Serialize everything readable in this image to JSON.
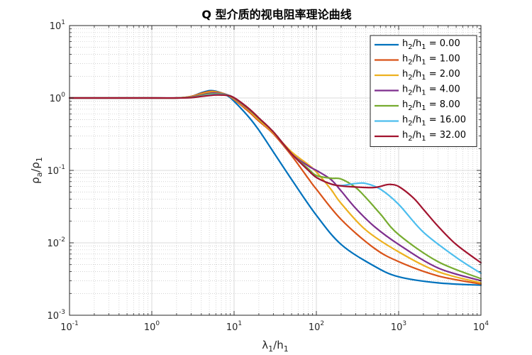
{
  "chart_data": {
    "type": "line",
    "title": "Q 型介质的视电阻率理论曲线",
    "xlabel": {
      "base": "λ",
      "sub": "1",
      "mid": "/h",
      "sub2": "1"
    },
    "ylabel": {
      "base": "ρ",
      "sub": "a",
      "mid": "/ρ",
      "sub2": "1"
    },
    "xscale": "log",
    "yscale": "log",
    "xlim": [
      0.1,
      10000
    ],
    "ylim": [
      0.001,
      10
    ],
    "x_ticks": [
      {
        "base": "10",
        "exp": "-1",
        "value": 0.1
      },
      {
        "base": "10",
        "exp": "0",
        "value": 1
      },
      {
        "base": "10",
        "exp": "1",
        "value": 10
      },
      {
        "base": "10",
        "exp": "2",
        "value": 100
      },
      {
        "base": "10",
        "exp": "3",
        "value": 1000
      },
      {
        "base": "10",
        "exp": "4",
        "value": 10000
      }
    ],
    "y_ticks": [
      {
        "base": "10",
        "exp": "-3",
        "value": 0.001
      },
      {
        "base": "10",
        "exp": "-2",
        "value": 0.01
      },
      {
        "base": "10",
        "exp": "-1",
        "value": 0.1
      },
      {
        "base": "10",
        "exp": "0",
        "value": 1
      },
      {
        "base": "10",
        "exp": "1",
        "value": 10
      }
    ],
    "grid": true,
    "minor_grid": true,
    "legend_position": "top-right",
    "series": [
      {
        "name": "h2/h1 = 0.00",
        "label": {
          "a": "h",
          "s1": "2",
          "b": "/h",
          "s2": "1",
          "c": " = 0.00"
        },
        "color": "#0072BD",
        "x": [
          0.1,
          1,
          2,
          3,
          4,
          5,
          6,
          8,
          10,
          15,
          20,
          30,
          50,
          100,
          200,
          500,
          1000,
          3000,
          10000
        ],
        "y": [
          1.0,
          1.0,
          1.0,
          1.05,
          1.18,
          1.26,
          1.24,
          1.1,
          0.9,
          0.55,
          0.36,
          0.18,
          0.075,
          0.024,
          0.0095,
          0.0048,
          0.0034,
          0.0028,
          0.0026
        ]
      },
      {
        "name": "h2/h1 = 1.00",
        "label": {
          "a": "h",
          "s1": "2",
          "b": "/h",
          "s2": "1",
          "c": " = 1.00"
        },
        "color": "#D95319",
        "x": [
          0.1,
          1,
          2,
          3,
          4,
          5,
          6,
          8,
          10,
          15,
          20,
          30,
          50,
          80,
          100,
          200,
          500,
          1000,
          3000,
          10000
        ],
        "y": [
          1.0,
          1.0,
          1.0,
          1.05,
          1.16,
          1.23,
          1.22,
          1.12,
          0.95,
          0.65,
          0.48,
          0.32,
          0.16,
          0.077,
          0.055,
          0.021,
          0.0085,
          0.0055,
          0.0035,
          0.0027
        ]
      },
      {
        "name": "h2/h1 = 2.00",
        "label": {
          "a": "h",
          "s1": "2",
          "b": "/h",
          "s2": "1",
          "c": " = 2.00"
        },
        "color": "#EDB120",
        "x": [
          0.1,
          1,
          2,
          3,
          4,
          5,
          6,
          8,
          10,
          15,
          20,
          30,
          50,
          80,
          100,
          150,
          200,
          400,
          1000,
          3000,
          10000
        ],
        "y": [
          1.0,
          1.0,
          1.0,
          1.04,
          1.13,
          1.2,
          1.2,
          1.12,
          0.97,
          0.68,
          0.5,
          0.33,
          0.18,
          0.12,
          0.095,
          0.055,
          0.035,
          0.015,
          0.0075,
          0.004,
          0.0028
        ]
      },
      {
        "name": "h2/h1 = 4.00",
        "label": {
          "a": "h",
          "s1": "2",
          "b": "/h",
          "s2": "1",
          "c": " = 4.00"
        },
        "color": "#7E2F8E",
        "x": [
          0.1,
          1,
          2,
          3,
          4,
          5,
          6,
          8,
          10,
          15,
          20,
          30,
          50,
          80,
          100,
          150,
          200,
          300,
          500,
          1000,
          3000,
          10000
        ],
        "y": [
          1.0,
          1.0,
          1.0,
          1.03,
          1.1,
          1.16,
          1.17,
          1.12,
          0.99,
          0.7,
          0.52,
          0.34,
          0.17,
          0.115,
          0.1,
          0.075,
          0.052,
          0.03,
          0.017,
          0.0095,
          0.0045,
          0.003
        ]
      },
      {
        "name": "h2/h1 = 8.00",
        "label": {
          "a": "h",
          "s1": "2",
          "b": "/h",
          "s2": "1",
          "c": " = 8.00"
        },
        "color": "#77AC30",
        "x": [
          0.1,
          1,
          2,
          3,
          4,
          5,
          6,
          8,
          10,
          15,
          20,
          30,
          50,
          80,
          100,
          150,
          200,
          300,
          400,
          600,
          1000,
          3000,
          10000
        ],
        "y": [
          1.0,
          1.0,
          1.0,
          1.02,
          1.08,
          1.13,
          1.14,
          1.11,
          1.0,
          0.71,
          0.52,
          0.34,
          0.17,
          0.105,
          0.085,
          0.078,
          0.076,
          0.058,
          0.042,
          0.025,
          0.013,
          0.0055,
          0.0032
        ]
      },
      {
        "name": "h2/h1 = 16.00",
        "label": {
          "a": "h",
          "s1": "2",
          "b": "/h",
          "s2": "1",
          "c": " = 16.00"
        },
        "color": "#4DBEEE",
        "x": [
          0.1,
          1,
          2,
          3,
          4,
          5,
          6,
          8,
          10,
          15,
          20,
          30,
          50,
          80,
          100,
          150,
          200,
          300,
          400,
          600,
          1000,
          2000,
          5000,
          10000
        ],
        "y": [
          1.0,
          1.0,
          1.0,
          1.01,
          1.06,
          1.1,
          1.12,
          1.1,
          1.01,
          0.72,
          0.53,
          0.34,
          0.17,
          0.1,
          0.08,
          0.065,
          0.062,
          0.066,
          0.066,
          0.055,
          0.034,
          0.014,
          0.0063,
          0.0038
        ]
      },
      {
        "name": "h2/h1 = 32.00",
        "label": {
          "a": "h",
          "s1": "2",
          "b": "/h",
          "s2": "1",
          "c": " = 32.00"
        },
        "color": "#A2142F",
        "x": [
          0.1,
          1,
          2,
          3,
          4,
          5,
          6,
          8,
          10,
          15,
          20,
          30,
          50,
          80,
          100,
          150,
          200,
          300,
          500,
          700,
          800,
          1000,
          1500,
          2000,
          3000,
          5000,
          10000
        ],
        "y": [
          1.0,
          1.0,
          1.0,
          1.01,
          1.05,
          1.08,
          1.1,
          1.09,
          1.01,
          0.72,
          0.53,
          0.34,
          0.17,
          0.1,
          0.08,
          0.065,
          0.061,
          0.059,
          0.058,
          0.063,
          0.064,
          0.06,
          0.042,
          0.029,
          0.017,
          0.0095,
          0.0053
        ]
      }
    ]
  }
}
